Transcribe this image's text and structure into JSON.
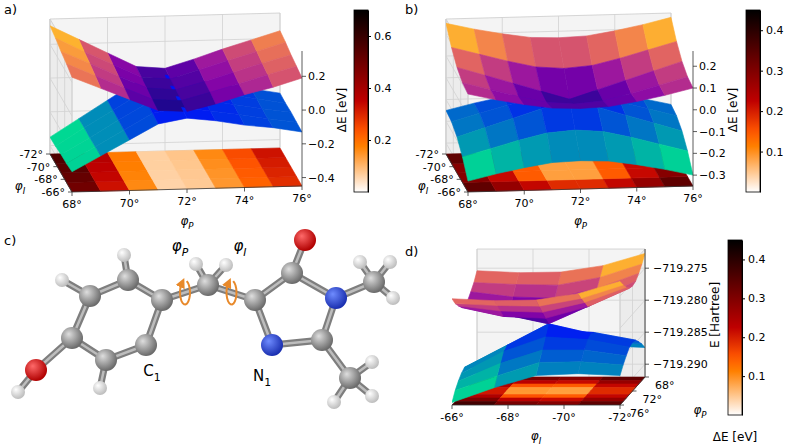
{
  "chart_data": [
    {
      "type": "surface3d",
      "panel_label": "a)",
      "xlabel": {
        "text": "φ",
        "sub": "P"
      },
      "ylabel": {
        "text": "φ",
        "sub": "I"
      },
      "zlabel": "ΔE [eV]",
      "x": [
        68,
        69,
        70,
        71,
        72,
        73,
        74,
        75,
        76
      ],
      "y": [
        -66,
        -67.5,
        -69,
        -70.5,
        -72
      ],
      "xlim": [
        68,
        76
      ],
      "ylim": [
        -72,
        -66
      ],
      "zlim": [
        -0.45,
        0.35
      ],
      "xticks": [
        {
          "value": 68,
          "label": "68°"
        },
        {
          "value": 70,
          "label": "70°"
        },
        {
          "value": 72,
          "label": "72°"
        },
        {
          "value": 74,
          "label": "74°"
        },
        {
          "value": 76,
          "label": "76°"
        }
      ],
      "yticks": [
        {
          "value": -72,
          "label": "-72°"
        },
        {
          "value": -70,
          "label": "-70°"
        },
        {
          "value": -68,
          "label": "-68°"
        },
        {
          "value": -66,
          "label": "-66°"
        }
      ],
      "zticks": [
        {
          "value": -0.4,
          "label": "−0.4"
        },
        {
          "value": -0.2,
          "label": "−0.2"
        },
        {
          "value": 0,
          "label": "0.0"
        },
        0.2
      ],
      "grid": true,
      "series": [
        {
          "color": "plasma",
          "values": [
            [
              0.23,
              0.16,
              0.09,
              0.02,
              0.01,
              0.05,
              0.1,
              0.14,
              0.19
            ],
            [
              0.253,
              0.178,
              0.103,
              0.028,
              0.018,
              0.063,
              0.108,
              0.158,
              0.203
            ],
            [
              0.27,
              0.195,
              0.115,
              0.04,
              0.025,
              0.07,
              0.12,
              0.17,
              0.215
            ],
            [
              0.293,
              0.208,
              0.128,
              0.048,
              0.033,
              0.083,
              0.133,
              0.183,
              0.233
            ],
            [
              0.31,
              0.225,
              0.14,
              0.055,
              0.04,
              0.09,
              0.145,
              0.195,
              0.245
            ]
          ]
        },
        {
          "color": "winter_r",
          "values": [
            [
              -0.33,
              -0.24,
              -0.15,
              -0.06,
              -0.03,
              -0.05,
              -0.08,
              -0.1,
              -0.13
            ],
            [
              -0.338,
              -0.243,
              -0.148,
              -0.053,
              -0.023,
              -0.048,
              -0.073,
              -0.103,
              -0.128
            ],
            [
              -0.34,
              -0.245,
              -0.145,
              -0.05,
              -0.015,
              -0.04,
              -0.07,
              -0.1,
              -0.125
            ],
            [
              -0.348,
              -0.243,
              -0.143,
              -0.043,
              -0.008,
              -0.038,
              -0.068,
              -0.098,
              -0.128
            ],
            [
              -0.35,
              -0.245,
              -0.14,
              -0.035,
              0,
              -0.03,
              -0.065,
              -0.095,
              -0.125
            ]
          ]
        }
      ],
      "colorbar": {
        "color": "gist_heat_r",
        "lim": [
          0,
          0.7
        ],
        "ticks": [
          0.2,
          0.4,
          0.6
        ],
        "values": [
          [
            0.56,
            0.4,
            0.24,
            0.08,
            0.04,
            0.1,
            0.18,
            0.24,
            0.32
          ],
          [
            0.59,
            0.42,
            0.25,
            0.08,
            0.04,
            0.11,
            0.18,
            0.26,
            0.33
          ],
          [
            0.61,
            0.44,
            0.26,
            0.09,
            0.04,
            0.11,
            0.19,
            0.27,
            0.34
          ],
          [
            0.64,
            0.45,
            0.27,
            0.09,
            0.04,
            0.12,
            0.2,
            0.28,
            0.36
          ],
          [
            0.66,
            0.47,
            0.28,
            0.09,
            0.04,
            0.12,
            0.21,
            0.29,
            0.37
          ]
        ]
      }
    },
    {
      "type": "surface3d",
      "panel_label": "b)",
      "xlabel": {
        "text": "φ",
        "sub": "P"
      },
      "ylabel": {
        "text": "φ",
        "sub": "I"
      },
      "zlabel": "ΔE [eV]",
      "x": [
        68,
        69,
        70,
        71,
        72,
        73,
        74,
        75,
        76
      ],
      "y": [
        -66,
        -67.5,
        -69,
        -70.5,
        -72
      ],
      "xlim": [
        68,
        76
      ],
      "ylim": [
        -72,
        -66
      ],
      "zlim": [
        -0.35,
        0.27
      ],
      "xticks": [
        {
          "value": 68,
          "label": "68°"
        },
        {
          "value": 70,
          "label": "70°"
        },
        {
          "value": 72,
          "label": "72°"
        },
        {
          "value": 74,
          "label": "74°"
        },
        {
          "value": 76,
          "label": "76°"
        }
      ],
      "yticks": [
        {
          "value": -72,
          "label": "-72°"
        },
        {
          "value": -70,
          "label": "-70°"
        },
        {
          "value": -68,
          "label": "-68°"
        },
        {
          "value": -66,
          "label": "-66°"
        }
      ],
      "zticks": [
        {
          "value": -0.3,
          "label": "−0.3"
        },
        {
          "value": -0.2,
          "label": "−0.2"
        },
        {
          "value": -0.1,
          "label": "−0.1"
        },
        {
          "value": 0,
          "label": "0.0"
        },
        0.1,
        0.2
      ],
      "grid": true,
      "series": [
        {
          "color": "plasma",
          "values": [
            [
              0.1,
              0.07,
              0.045,
              0.025,
              0.02,
              0.025,
              0.045,
              0.07,
              0.1
            ],
            [
              0.108,
              0.073,
              0.038,
              0.008,
              -0.003,
              0.008,
              0.038,
              0.073,
              0.108
            ],
            [
              0.135,
              0.095,
              0.055,
              0.015,
              -0.025,
              0.015,
              0.055,
              0.095,
              0.135
            ],
            [
              0.183,
              0.148,
              0.113,
              0.083,
              0.073,
              0.083,
              0.113,
              0.148,
              0.183
            ],
            [
              0.25,
              0.22,
              0.195,
              0.175,
              0.17,
              0.175,
              0.195,
              0.22,
              0.25
            ]
          ]
        },
        {
          "color": "winter_r",
          "values": [
            [
              -0.3,
              -0.27,
              -0.245,
              -0.225,
              -0.22,
              -0.225,
              -0.245,
              -0.27,
              -0.3
            ],
            [
              -0.233,
              -0.198,
              -0.163,
              -0.133,
              -0.123,
              -0.133,
              -0.163,
              -0.198,
              -0.233
            ],
            [
              -0.185,
              -0.145,
              -0.105,
              -0.065,
              -0.025,
              -0.065,
              -0.105,
              -0.145,
              -0.185
            ],
            [
              -0.158,
              -0.123,
              -0.088,
              -0.058,
              -0.048,
              -0.058,
              -0.088,
              -0.123,
              -0.158
            ],
            [
              -0.15,
              -0.12,
              -0.095,
              -0.075,
              -0.07,
              -0.075,
              -0.095,
              -0.12,
              -0.15
            ]
          ]
        }
      ],
      "colorbar": {
        "color": "gist_heat_r",
        "lim": [
          0,
          0.45
        ],
        "ticks": [
          0.1,
          0.2,
          0.3,
          0.4
        ],
        "values": [
          [
            0.4,
            0.34,
            0.29,
            0.25,
            0.24,
            0.25,
            0.29,
            0.34,
            0.4
          ],
          [
            0.34,
            0.27,
            0.2,
            0.14,
            0.12,
            0.14,
            0.2,
            0.27,
            0.34
          ],
          [
            0.32,
            0.24,
            0.16,
            0.08,
            0.0,
            0.08,
            0.16,
            0.24,
            0.32
          ],
          [
            0.34,
            0.27,
            0.2,
            0.14,
            0.12,
            0.14,
            0.2,
            0.27,
            0.34
          ],
          [
            0.4,
            0.34,
            0.29,
            0.25,
            0.24,
            0.25,
            0.29,
            0.34,
            0.4
          ]
        ]
      }
    },
    {
      "type": "surface3d",
      "panel_label": "d)",
      "xlabel": {
        "text": "φ",
        "sub": "P"
      },
      "ylabel": {
        "text": "φ",
        "sub": "I"
      },
      "zlabel": "E [Hartree]",
      "x": [
        68,
        69,
        70,
        71,
        72,
        73,
        74,
        75,
        76
      ],
      "y": [
        -66,
        -67.5,
        -69,
        -70.5,
        -72
      ],
      "xlim": [
        68,
        76
      ],
      "ylim": [
        -72,
        -66
      ],
      "zlim": [
        -719.292,
        -719.272
      ],
      "xticks": [
        {
          "value": 68,
          "label": "68°"
        },
        {
          "value": 72,
          "label": "72°"
        },
        {
          "value": 76,
          "label": "76°"
        }
      ],
      "yticks": [
        {
          "value": -66,
          "label": "-66°"
        },
        {
          "value": -68,
          "label": "-68°"
        },
        {
          "value": -70,
          "label": "-70°"
        },
        {
          "value": -72,
          "label": "-72°"
        }
      ],
      "zticks": [
        {
          "value": -719.29,
          "label": "−719.290"
        },
        {
          "value": -719.285,
          "label": "−719.285"
        },
        {
          "value": -719.28,
          "label": "−719.280"
        },
        {
          "value": -719.275,
          "label": "−719.275"
        }
      ],
      "grid": true,
      "series": [
        {
          "color": "plasma",
          "values": [
            [
              -719.2754,
              -719.2767,
              -719.2776,
              -719.2784,
              -719.2787,
              -719.2784,
              -719.2776,
              -719.2767,
              -719.2754
            ],
            [
              -719.2757,
              -719.277,
              -719.2784,
              -719.2798,
              -719.2801,
              -719.2798,
              -719.2784,
              -719.277,
              -719.2757
            ],
            [
              -719.2756,
              -719.2771,
              -719.2786,
              -719.2801,
              -719.2815,
              -719.2801,
              -719.2786,
              -719.2771,
              -719.2756
            ],
            [
              -719.2746,
              -719.2759,
              -719.2771,
              -719.2783,
              -719.2786,
              -719.2783,
              -719.2771,
              -719.2759,
              -719.2746
            ],
            [
              -719.2727,
              -719.2738,
              -719.2747,
              -719.2754,
              -719.2756,
              -719.2754,
              -719.2747,
              -719.2738,
              -719.2727
            ]
          ]
        },
        {
          "color": "winter_r",
          "values": [
            [
              -719.2916,
              -719.2903,
              -719.2894,
              -719.2887,
              -719.2883,
              -719.2887,
              -719.2894,
              -719.2903,
              -719.2916
            ],
            [
              -719.2893,
              -719.288,
              -719.2866,
              -719.2853,
              -719.2849,
              -719.2853,
              -719.2866,
              -719.288,
              -719.2893
            ],
            [
              -719.2874,
              -719.2859,
              -719.2845,
              -719.283,
              -719.2815,
              -719.283,
              -719.2845,
              -719.2859,
              -719.2874
            ],
            [
              -719.2871,
              -719.2858,
              -719.2845,
              -719.2834,
              -719.283,
              -719.2834,
              -719.2845,
              -719.2858,
              -719.2871
            ],
            [
              -719.2874,
              -719.2863,
              -719.2854,
              -719.2846,
              -719.2844,
              -719.2846,
              -719.2854,
              -719.2863,
              -719.2874
            ]
          ]
        }
      ],
      "colorbar": {
        "color": "gist_heat_r",
        "lim": [
          0,
          0.45
        ],
        "ticks": [
          0.1,
          0.2,
          0.3,
          0.4
        ],
        "label": "ΔE [eV]",
        "values": [
          [
            0.44,
            0.37,
            0.32,
            0.28,
            0.26,
            0.28,
            0.32,
            0.37,
            0.44
          ],
          [
            0.37,
            0.3,
            0.22,
            0.15,
            0.13,
            0.15,
            0.22,
            0.3,
            0.37
          ],
          [
            0.32,
            0.24,
            0.16,
            0.08,
            0.0,
            0.08,
            0.16,
            0.24,
            0.32
          ],
          [
            0.34,
            0.27,
            0.2,
            0.14,
            0.12,
            0.14,
            0.2,
            0.27,
            0.34
          ],
          [
            0.4,
            0.34,
            0.29,
            0.25,
            0.24,
            0.25,
            0.29,
            0.34,
            0.4
          ]
        ]
      }
    }
  ],
  "diagram": {
    "panel_label": "c)",
    "labels": [
      {
        "text": "φ",
        "sub": "P"
      },
      {
        "text": "φ",
        "sub": "I"
      },
      {
        "text": "C",
        "sub": "1"
      },
      {
        "text": "N",
        "sub": "1"
      }
    ]
  }
}
